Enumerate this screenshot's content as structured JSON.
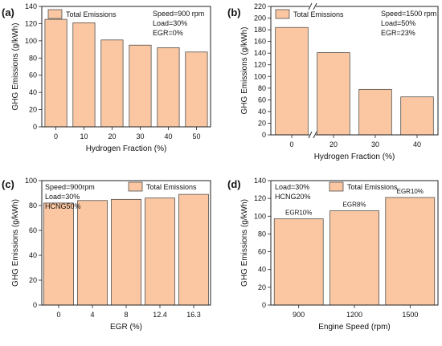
{
  "chart_data": [
    {
      "type": "bar",
      "panel": "(a)",
      "categories": [
        "0",
        "10",
        "20",
        "30",
        "40",
        "50"
      ],
      "series": [
        {
          "name": "Total Emissions",
          "values": [
            125,
            121,
            101,
            95,
            92,
            87
          ]
        }
      ],
      "xlabel": "Hydrogen Fraction (%)",
      "ylabel": "GHG Emissions (g/kWh)",
      "ylim": [
        0,
        140
      ],
      "yticks": [
        0,
        20,
        40,
        60,
        80,
        100,
        120,
        140
      ],
      "annotations": [
        "Speed=900 rpm",
        "Load=30%",
        "EGR=0%"
      ],
      "legend_position": "top-left",
      "grid": false
    },
    {
      "type": "bar",
      "panel": "(b)",
      "categories": [
        "0",
        "20",
        "30",
        "40"
      ],
      "series": [
        {
          "name": "Total Emissions",
          "values": [
            184,
            141,
            78,
            65
          ]
        }
      ],
      "xlabel": "Hydrogen Fraction (%)",
      "ylabel": "GHG Emissions (g/kWh)",
      "ylim": [
        0,
        220
      ],
      "yticks": [
        0,
        20,
        40,
        60,
        80,
        100,
        120,
        140,
        160,
        180,
        200,
        220
      ],
      "axis_break": "x between 0 and 20",
      "annotations": [
        "Speed=1500 rpm",
        "Load=50%",
        "EGR=23%"
      ],
      "legend_position": "top-left",
      "grid": false
    },
    {
      "type": "bar",
      "panel": "(c)",
      "categories": [
        "0",
        "4",
        "8",
        "12.4",
        "16.3"
      ],
      "series": [
        {
          "name": "Total Emissions",
          "values": [
            82,
            84,
            85,
            86,
            89
          ]
        }
      ],
      "xlabel": "EGR (%)",
      "ylabel": "GHG Emissions (g/kWh)",
      "ylim": [
        0,
        100
      ],
      "yticks": [
        0,
        20,
        40,
        60,
        80,
        100
      ],
      "annotations": [
        "Speed=900rpm",
        "Load=30%",
        "HCNG50%"
      ],
      "legend_position": "top-right",
      "grid": false
    },
    {
      "type": "bar",
      "panel": "(d)",
      "categories": [
        "900",
        "1200",
        "1500"
      ],
      "series": [
        {
          "name": "Total Emissions",
          "values": [
            97,
            106,
            121
          ]
        }
      ],
      "data_labels": [
        "EGR10%",
        "EGR8%",
        "EGR10%"
      ],
      "xlabel": "Engine Speed (rpm)",
      "ylabel": "GHG Emissions (g/kWh)",
      "ylim": [
        0,
        140
      ],
      "yticks": [
        0,
        20,
        40,
        60,
        80,
        100,
        120,
        140
      ],
      "annotations": [
        "Load=30%",
        "HCNG20%"
      ],
      "legend_position": "top-center",
      "grid": false
    }
  ],
  "colors": {
    "bar_fill": "#fac7a2",
    "bar_stroke": "#3a3a3a",
    "axis": "#222222"
  }
}
